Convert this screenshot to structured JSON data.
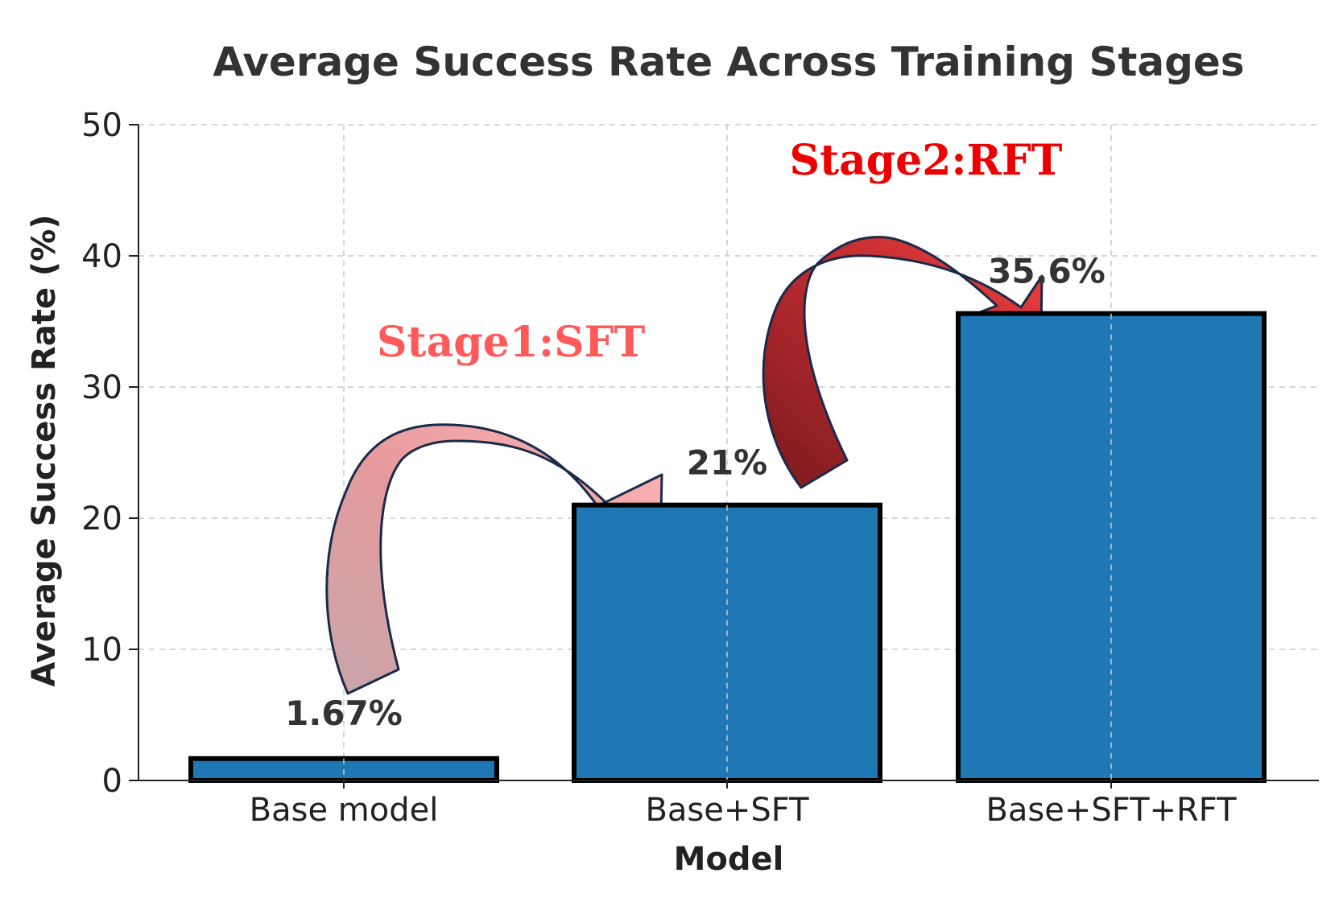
{
  "chart_data": {
    "type": "bar",
    "title": "Average Success Rate Across Training Stages",
    "xlabel": "Model",
    "ylabel": "Average Success Rate (%)",
    "categories": [
      "Base model",
      "Base+SFT",
      "Base+SFT+RFT"
    ],
    "values": [
      1.67,
      21,
      35.6
    ],
    "data_labels": [
      "1.67%",
      "21%",
      "35.6%"
    ],
    "ylim": [
      0,
      50
    ],
    "yticks": [
      0,
      10,
      20,
      30,
      40,
      50
    ],
    "grid": true,
    "bar_color": "#1f77b4",
    "annotations": [
      {
        "text": "Stage1:SFT",
        "color": "#ff5a5a",
        "from": "Base model",
        "to": "Base+SFT"
      },
      {
        "text": "Stage2:RFT",
        "color": "#ee0000",
        "from": "Base+SFT",
        "to": "Base+SFT+RFT"
      }
    ]
  }
}
